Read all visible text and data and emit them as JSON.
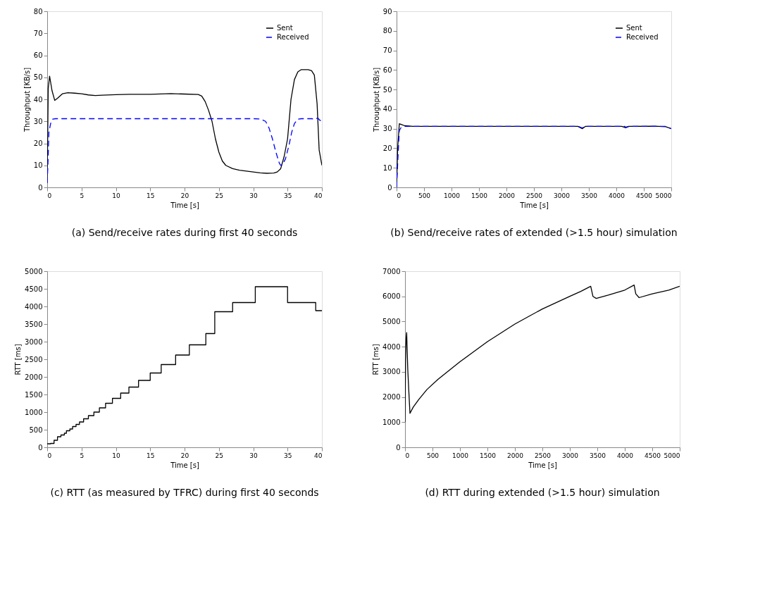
{
  "chart_data": [
    {
      "type": "line",
      "title": "(a) Send/receive rates during first 40 seconds",
      "xlabel": "Time [s]",
      "ylabel": "Throughput [KB/s]",
      "xlim": [
        0,
        40
      ],
      "ylim": [
        0,
        80
      ],
      "xticks": [
        0,
        5,
        10,
        15,
        20,
        25,
        30,
        35,
        40
      ],
      "yticks": [
        0,
        10,
        20,
        30,
        40,
        50,
        60,
        70,
        80
      ],
      "legend": "top right",
      "series": [
        {
          "name": "Sent",
          "color": "#000000",
          "line_style": "solid",
          "x": [
            0,
            0.15,
            0.35,
            0.7,
            1.1,
            1.5,
            2.2,
            3,
            4,
            5,
            6,
            7,
            8,
            10,
            12,
            15,
            18,
            20,
            22,
            22.5,
            23,
            23.5,
            24,
            24.5,
            25,
            25.5,
            26,
            27,
            28,
            30,
            31,
            32,
            33,
            33.5,
            34,
            34.5,
            35,
            35.5,
            36,
            36.5,
            37,
            38,
            38.5,
            38.9,
            39.3,
            39.6,
            40
          ],
          "values": [
            2,
            45,
            50.5,
            44,
            39.5,
            40.5,
            42.5,
            43,
            42.8,
            42.5,
            42,
            41.7,
            41.9,
            42.1,
            42.3,
            42.3,
            42.6,
            42.4,
            42.2,
            41.5,
            39,
            35,
            30,
            22,
            16,
            12,
            10,
            8.5,
            7.8,
            7,
            6.6,
            6.4,
            6.5,
            7,
            8.5,
            14,
            22,
            40,
            49,
            52.5,
            53.5,
            53.5,
            53,
            51,
            38,
            17,
            10
          ]
        },
        {
          "name": "Received",
          "color": "#0000ff",
          "line_style": "dashed",
          "x": [
            0,
            0.1,
            0.25,
            0.5,
            0.8,
            1.2,
            5,
            30,
            31,
            31.8,
            32.3,
            32.8,
            33.3,
            33.8,
            34,
            34.3,
            34.7,
            35.2,
            35.6,
            36,
            36.5,
            37,
            38.5,
            39,
            39.4,
            39.7,
            40
          ],
          "values": [
            2,
            10,
            25,
            29,
            31,
            31.2,
            31.2,
            31.2,
            31.1,
            30,
            27,
            22,
            16,
            11,
            10,
            10.5,
            13,
            19,
            25,
            29,
            31,
            31.2,
            31.2,
            31,
            31.5,
            30.5,
            30
          ]
        }
      ]
    },
    {
      "type": "line",
      "title": "(b) Send/receive rates of extended (>1.5 hour) simulation",
      "xlabel": "Time [s]",
      "ylabel": "Throughput [KB/s]",
      "xlim": [
        0,
        5000
      ],
      "ylim": [
        0,
        90
      ],
      "xticks": [
        0,
        500,
        1000,
        1500,
        2000,
        2500,
        3000,
        3500,
        4000,
        4500,
        5000
      ],
      "yticks": [
        0,
        10,
        20,
        30,
        40,
        50,
        60,
        70,
        80,
        90
      ],
      "legend": "top right",
      "series": [
        {
          "name": "Sent",
          "color": "#000000",
          "line_style": "solid",
          "x": [
            0,
            20,
            50,
            100,
            150,
            300,
            1000,
            2000,
            3000,
            3300,
            3380,
            3440,
            4100,
            4170,
            4230,
            4700,
            4900,
            5000
          ],
          "values": [
            0,
            20,
            32.5,
            32,
            31.5,
            31.2,
            31.2,
            31.2,
            31.2,
            31.2,
            30,
            31.2,
            31.2,
            30.5,
            31.2,
            31.3,
            31,
            30
          ]
        },
        {
          "name": "Received",
          "color": "#0000ff",
          "line_style": "dashed",
          "x": [
            0,
            25,
            50,
            80,
            150,
            3000,
            3300,
            3380,
            3440,
            4150,
            4170,
            4230,
            4900,
            5000
          ],
          "values": [
            0,
            15,
            29,
            30.5,
            31.2,
            31.2,
            31.2,
            30.4,
            31.2,
            31.2,
            30.8,
            31.2,
            31.2,
            30
          ]
        }
      ]
    },
    {
      "type": "step",
      "title": "(c) RTT (as measured by TFRC) during first 40 seconds",
      "xlabel": "Time [s]",
      "ylabel": "RTT [ms]",
      "xlim": [
        0,
        40
      ],
      "ylim": [
        0,
        5000
      ],
      "xticks": [
        0,
        5,
        10,
        15,
        20,
        25,
        30,
        35,
        40
      ],
      "yticks": [
        0,
        500,
        1000,
        1500,
        2000,
        2500,
        3000,
        3500,
        4000,
        4500,
        5000
      ],
      "series": [
        {
          "color": "#000000",
          "line_style": "solid",
          "x": [
            0,
            0.5,
            1,
            1.5,
            2,
            2.5,
            2.8,
            3.3,
            3.7,
            4.2,
            4.7,
            5.3,
            6,
            6.8,
            7.6,
            8.5,
            9.5,
            10.7,
            11.9,
            13.3,
            15,
            16.6,
            18.7,
            20.7,
            23.1,
            24.4,
            27,
            30.3,
            35,
            39.1,
            40
          ],
          "values": [
            100,
            110,
            200,
            300,
            350,
            400,
            470,
            520,
            590,
            650,
            720,
            810,
            900,
            1000,
            1120,
            1250,
            1390,
            1540,
            1710,
            1900,
            2110,
            2350,
            2620,
            2910,
            3230,
            3850,
            4110,
            4560,
            4110,
            3880,
            3880
          ]
        }
      ]
    },
    {
      "type": "line",
      "title": "(d) RTT during extended (>1.5 hour) simulation",
      "xlabel": "Time [s]",
      "ylabel": "RTT [ms]",
      "xlim": [
        0,
        5000
      ],
      "ylim": [
        0,
        7000
      ],
      "xticks": [
        0,
        500,
        1000,
        1500,
        2000,
        2500,
        3000,
        3500,
        4000,
        4500,
        5000
      ],
      "yticks": [
        0,
        1000,
        2000,
        3000,
        4000,
        5000,
        6000,
        7000
      ],
      "series": [
        {
          "color": "#000000",
          "line_style": "solid",
          "x": [
            0,
            10,
            20,
            30,
            40,
            50,
            70,
            90,
            150,
            250,
            400,
            600,
            800,
            1000,
            1250,
            1500,
            1750,
            2000,
            2250,
            2500,
            2750,
            3000,
            3200,
            3380,
            3420,
            3480,
            3700,
            4000,
            4170,
            4200,
            4260,
            4500,
            4800,
            5000
          ],
          "values": [
            1000,
            3500,
            4300,
            4560,
            3800,
            3100,
            2200,
            1350,
            1600,
            1900,
            2300,
            2700,
            3050,
            3400,
            3800,
            4200,
            4550,
            4900,
            5200,
            5500,
            5750,
            6000,
            6200,
            6400,
            6000,
            5920,
            6050,
            6250,
            6450,
            6100,
            5950,
            6100,
            6250,
            6400
          ]
        }
      ]
    }
  ]
}
